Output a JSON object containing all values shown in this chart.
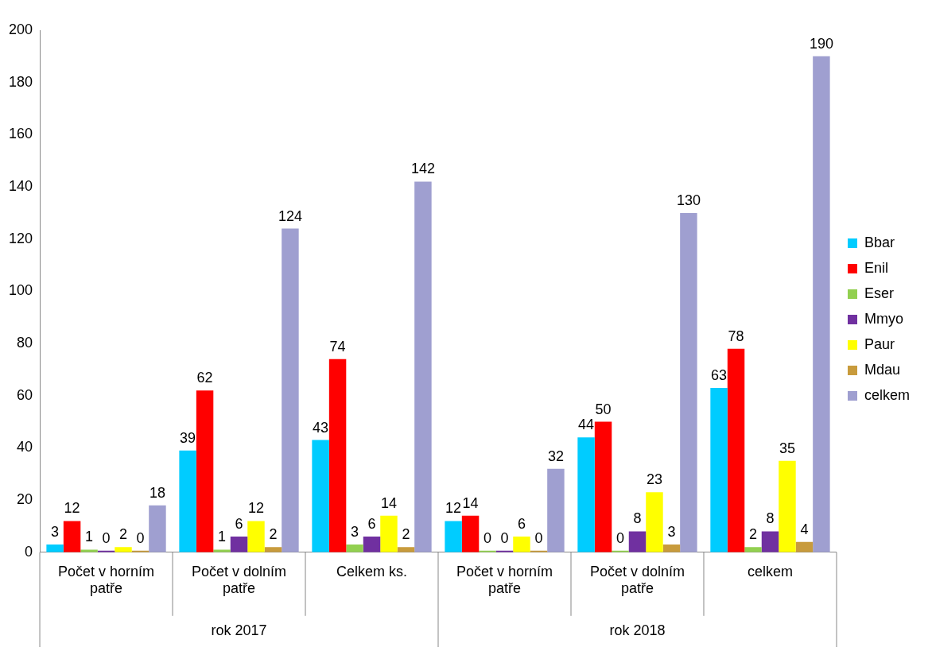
{
  "chart_data": {
    "type": "bar",
    "categories": [
      "Počet v horním patře",
      "Počet v dolním patře",
      "Celkem ks.",
      "Počet v horním patře",
      "Počet v dolním patře",
      "celkem"
    ],
    "annotations": [
      "rok 2017",
      "rok 2018"
    ],
    "series": [
      {
        "name": "Bbar",
        "color": "#00ccff",
        "values": [
          3,
          39,
          43,
          12,
          44,
          63
        ]
      },
      {
        "name": "Enil",
        "color": "#ff0000",
        "values": [
          12,
          62,
          74,
          14,
          50,
          78
        ]
      },
      {
        "name": "Eser",
        "color": "#92d050",
        "values": [
          1,
          1,
          3,
          0,
          0,
          2
        ]
      },
      {
        "name": "Mmyo",
        "color": "#7030a0",
        "values": [
          0,
          6,
          6,
          0,
          8,
          8
        ]
      },
      {
        "name": "Paur",
        "color": "#ffff00",
        "values": [
          2,
          12,
          14,
          6,
          23,
          35
        ]
      },
      {
        "name": "Mdau",
        "color": "#c89b3c",
        "values": [
          0,
          2,
          2,
          0,
          3,
          4
        ]
      },
      {
        "name": "celkem",
        "color": "#9f9fd0",
        "values": [
          18,
          124,
          142,
          32,
          130,
          190
        ]
      }
    ],
    "ylim": [
      0,
      200
    ],
    "yticks": [
      0,
      20,
      40,
      60,
      80,
      100,
      120,
      140,
      160,
      180,
      200
    ],
    "grid": false,
    "legend": "right",
    "data_labels": true
  }
}
